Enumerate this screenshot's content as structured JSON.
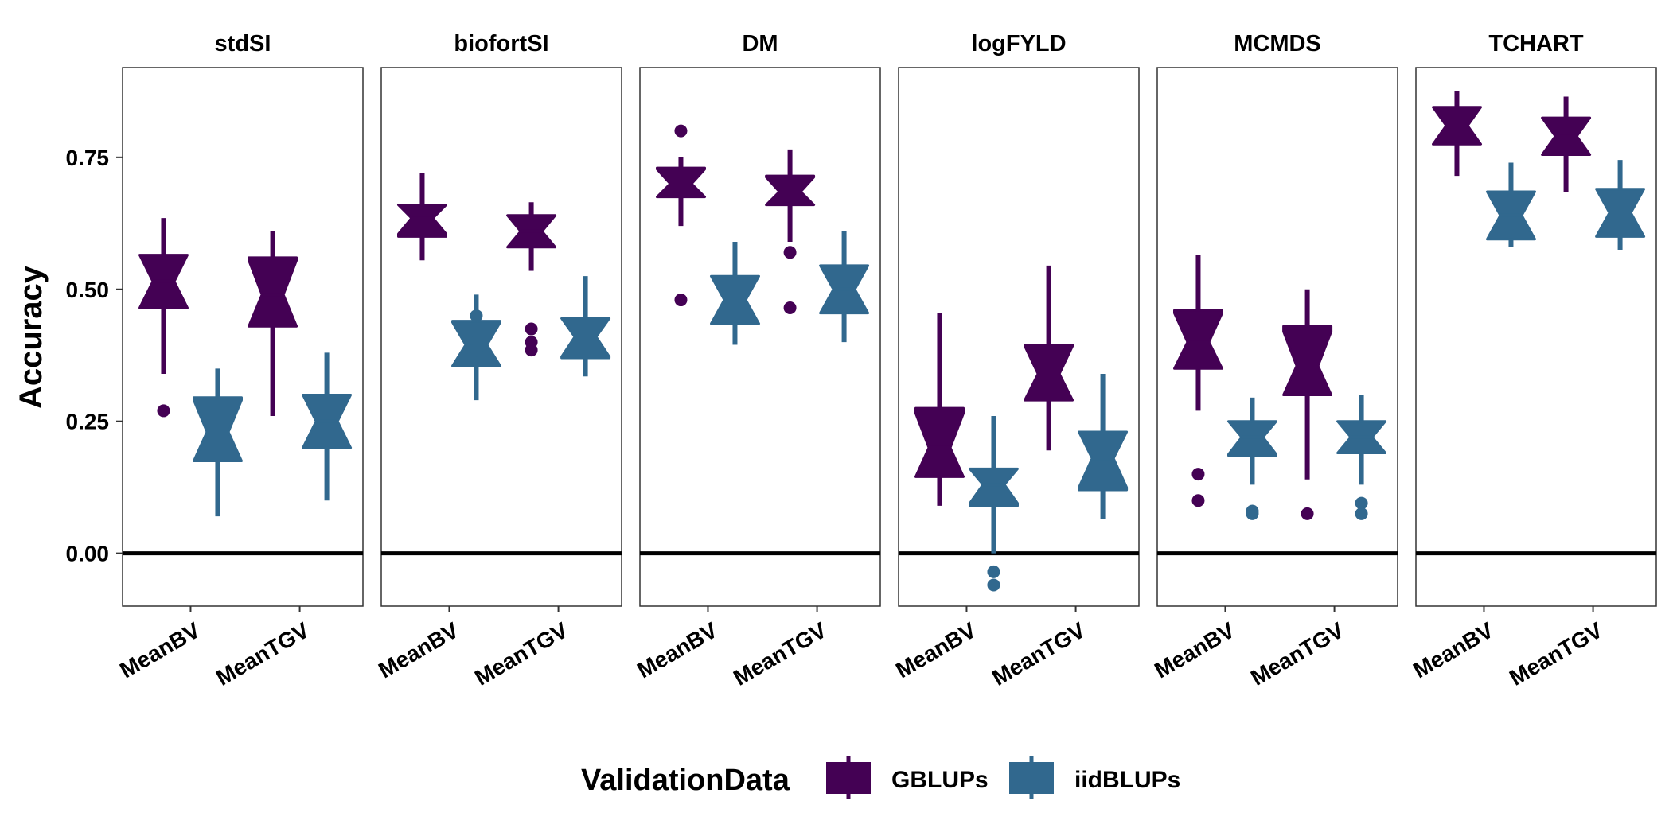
{
  "chart_data": {
    "type": "boxplot",
    "notched": true,
    "ylabel": "Accuracy",
    "ylim": [
      -0.1,
      0.92
    ],
    "yticks": [
      0.0,
      0.25,
      0.5,
      0.75
    ],
    "ytick_labels": [
      "0.00",
      "0.25",
      "0.50",
      "0.75"
    ],
    "reference_line": 0.0,
    "grid": false,
    "categories": [
      "MeanBV",
      "MeanTGV"
    ],
    "legend": {
      "title": "ValidationData",
      "position": "bottom",
      "items": [
        {
          "name": "GBLUPs",
          "color": "#440154"
        },
        {
          "name": "iidBLUPs",
          "color": "#31688E"
        }
      ]
    },
    "panels": [
      {
        "facet": "stdSI",
        "boxes": [
          {
            "category": "MeanBV",
            "series": "GBLUPs",
            "min": 0.34,
            "q1": 0.465,
            "median": 0.515,
            "q3": 0.565,
            "max": 0.635,
            "outliers": [
              0.27
            ]
          },
          {
            "category": "MeanBV",
            "series": "iidBLUPs",
            "min": 0.07,
            "q1": 0.175,
            "median": 0.23,
            "q3": 0.295,
            "max": 0.35,
            "outliers": []
          },
          {
            "category": "MeanTGV",
            "series": "GBLUPs",
            "min": 0.26,
            "q1": 0.43,
            "median": 0.49,
            "q3": 0.56,
            "max": 0.61,
            "outliers": []
          },
          {
            "category": "MeanTGV",
            "series": "iidBLUPs",
            "min": 0.1,
            "q1": 0.2,
            "median": 0.25,
            "q3": 0.3,
            "max": 0.38,
            "outliers": []
          }
        ]
      },
      {
        "facet": "biofortSI",
        "boxes": [
          {
            "category": "MeanBV",
            "series": "GBLUPs",
            "min": 0.555,
            "q1": 0.6,
            "median": 0.635,
            "q3": 0.66,
            "max": 0.72,
            "outliers": []
          },
          {
            "category": "MeanBV",
            "series": "iidBLUPs",
            "min": 0.29,
            "q1": 0.355,
            "median": 0.395,
            "q3": 0.44,
            "max": 0.49,
            "outliers": [
              0.45,
              0.4,
              0.385
            ]
          },
          {
            "category": "MeanTGV",
            "series": "GBLUPs",
            "min": 0.535,
            "q1": 0.58,
            "median": 0.61,
            "q3": 0.64,
            "max": 0.665,
            "outliers": [
              0.425,
              0.4,
              0.385
            ]
          },
          {
            "category": "MeanTGV",
            "series": "iidBLUPs",
            "min": 0.335,
            "q1": 0.37,
            "median": 0.41,
            "q3": 0.445,
            "max": 0.525,
            "outliers": []
          }
        ]
      },
      {
        "facet": "DM",
        "boxes": [
          {
            "category": "MeanBV",
            "series": "GBLUPs",
            "min": 0.62,
            "q1": 0.675,
            "median": 0.7,
            "q3": 0.73,
            "max": 0.75,
            "outliers": [
              0.8,
              0.48
            ]
          },
          {
            "category": "MeanBV",
            "series": "iidBLUPs",
            "min": 0.395,
            "q1": 0.435,
            "median": 0.48,
            "q3": 0.525,
            "max": 0.59,
            "outliers": []
          },
          {
            "category": "MeanTGV",
            "series": "GBLUPs",
            "min": 0.59,
            "q1": 0.66,
            "median": 0.685,
            "q3": 0.715,
            "max": 0.765,
            "outliers": [
              0.57,
              0.465
            ]
          },
          {
            "category": "MeanTGV",
            "series": "iidBLUPs",
            "min": 0.4,
            "q1": 0.455,
            "median": 0.5,
            "q3": 0.545,
            "max": 0.61,
            "outliers": []
          }
        ]
      },
      {
        "facet": "logFYLD",
        "boxes": [
          {
            "category": "MeanBV",
            "series": "GBLUPs",
            "min": 0.09,
            "q1": 0.145,
            "median": 0.2,
            "q3": 0.275,
            "max": 0.455,
            "outliers": []
          },
          {
            "category": "MeanBV",
            "series": "iidBLUPs",
            "min": 0.0,
            "q1": 0.09,
            "median": 0.13,
            "q3": 0.16,
            "max": 0.26,
            "outliers": [
              -0.035,
              -0.06
            ]
          },
          {
            "category": "MeanTGV",
            "series": "GBLUPs",
            "min": 0.195,
            "q1": 0.29,
            "median": 0.34,
            "q3": 0.395,
            "max": 0.545,
            "outliers": []
          },
          {
            "category": "MeanTGV",
            "series": "iidBLUPs",
            "min": 0.065,
            "q1": 0.12,
            "median": 0.18,
            "q3": 0.23,
            "max": 0.34,
            "outliers": []
          }
        ]
      },
      {
        "facet": "MCMDS",
        "boxes": [
          {
            "category": "MeanBV",
            "series": "GBLUPs",
            "min": 0.27,
            "q1": 0.35,
            "median": 0.4,
            "q3": 0.46,
            "max": 0.565,
            "outliers": [
              0.15,
              0.1
            ]
          },
          {
            "category": "MeanBV",
            "series": "iidBLUPs",
            "min": 0.13,
            "q1": 0.185,
            "median": 0.22,
            "q3": 0.25,
            "max": 0.295,
            "outliers": [
              0.08,
              0.075
            ]
          },
          {
            "category": "MeanTGV",
            "series": "GBLUPs",
            "min": 0.14,
            "q1": 0.3,
            "median": 0.355,
            "q3": 0.43,
            "max": 0.5,
            "outliers": [
              0.075
            ]
          },
          {
            "category": "MeanTGV",
            "series": "iidBLUPs",
            "min": 0.13,
            "q1": 0.19,
            "median": 0.22,
            "q3": 0.25,
            "max": 0.3,
            "outliers": [
              0.095,
              0.075
            ]
          }
        ]
      },
      {
        "facet": "TCHART",
        "boxes": [
          {
            "category": "MeanBV",
            "series": "GBLUPs",
            "min": 0.715,
            "q1": 0.775,
            "median": 0.81,
            "q3": 0.845,
            "max": 0.875,
            "outliers": []
          },
          {
            "category": "MeanBV",
            "series": "iidBLUPs",
            "min": 0.58,
            "q1": 0.595,
            "median": 0.64,
            "q3": 0.685,
            "max": 0.74,
            "outliers": []
          },
          {
            "category": "MeanTGV",
            "series": "GBLUPs",
            "min": 0.685,
            "q1": 0.755,
            "median": 0.79,
            "q3": 0.825,
            "max": 0.865,
            "outliers": []
          },
          {
            "category": "MeanTGV",
            "series": "iidBLUPs",
            "min": 0.575,
            "q1": 0.6,
            "median": 0.645,
            "q3": 0.69,
            "max": 0.745,
            "outliers": []
          }
        ]
      }
    ]
  }
}
